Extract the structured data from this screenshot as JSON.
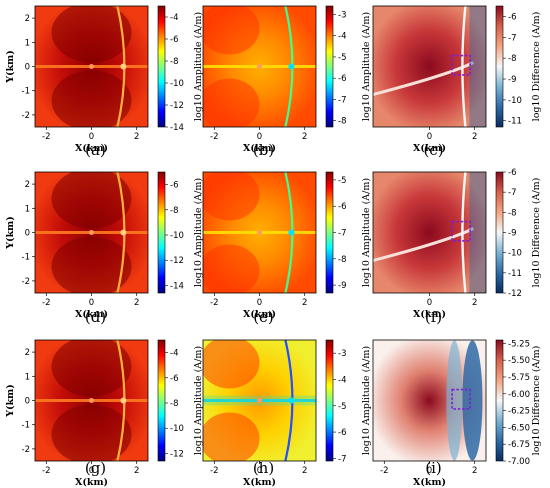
{
  "colors": {
    "jet": [
      "#00007f",
      "#0000ff",
      "#0080ff",
      "#00ffff",
      "#80ff80",
      "#ffff00",
      "#ff8000",
      "#ff0000",
      "#7f0000"
    ],
    "diverging": [
      "#0b2a62",
      "#2d6aa6",
      "#7ab3d4",
      "#f7f7f7",
      "#f4a582",
      "#d6604d",
      "#8b0a1e"
    ],
    "marker_box": "#7a1fd6"
  },
  "chart_data": [
    {
      "panel": "(a)",
      "type": "heatmap",
      "ylabel": "Y(km)",
      "xlabel": "X(km)",
      "xlim": [
        -2.5,
        2.5
      ],
      "ylim": [
        -2.5,
        2.5
      ],
      "xticks": [
        "-2",
        "0",
        "2"
      ],
      "yticks": [
        "2",
        "1",
        "0",
        "-1",
        "-2"
      ],
      "colorbar": {
        "label": "log10 Amplitude (A/m)",
        "range": [
          -14,
          -3
        ],
        "ticks": [
          "-4",
          "-6",
          "-8",
          "-10",
          "-12",
          "-14"
        ],
        "cmap": "jet"
      }
    },
    {
      "panel": "(b)",
      "type": "heatmap",
      "ylabel": "",
      "xlabel": "X(km)",
      "xlim": [
        -2.5,
        2.5
      ],
      "ylim": [
        -2.5,
        2.5
      ],
      "xticks": [
        "-2",
        "0",
        "2"
      ],
      "yticks": [],
      "colorbar": {
        "label": "log10 Amplitude (A/m)",
        "range": [
          -8.3,
          -2.6
        ],
        "ticks": [
          "-3",
          "-4",
          "-5",
          "-6",
          "-7",
          "-8"
        ],
        "cmap": "jet"
      }
    },
    {
      "panel": "(c)",
      "type": "heatmap",
      "ylabel": "",
      "xlabel": "X(km)",
      "xlim": [
        -2.5,
        2.5
      ],
      "ylim": [
        -2.5,
        2.5
      ],
      "xticks": [
        "0",
        "2"
      ],
      "yticks": [],
      "colorbar": {
        "label": "log10 Difference (A/m)",
        "range": [
          -11.3,
          -5.5
        ],
        "ticks": [
          "-6",
          "-7",
          "-8",
          "-9",
          "-10",
          "-11"
        ],
        "cmap": "diverging"
      },
      "box": {
        "x": [
          1.0,
          1.8
        ],
        "y": [
          -0.35,
          0.45
        ]
      }
    },
    {
      "panel": "(d)",
      "type": "heatmap",
      "ylabel": "Y(km)",
      "xlabel": "X(km)",
      "xlim": [
        -2.5,
        2.5
      ],
      "ylim": [
        -2.5,
        2.5
      ],
      "xticks": [
        "-2",
        "0",
        "2"
      ],
      "yticks": [
        "2",
        "1",
        "0",
        "-1",
        "-2"
      ],
      "colorbar": {
        "label": "log10 Amplitude (A/m)",
        "range": [
          -14.6,
          -5
        ],
        "ticks": [
          "-6",
          "-8",
          "-10",
          "-12",
          "-14"
        ],
        "cmap": "jet"
      }
    },
    {
      "panel": "(e)",
      "type": "heatmap",
      "ylabel": "",
      "xlabel": "X(km)",
      "xlim": [
        -2.5,
        2.5
      ],
      "ylim": [
        -2.5,
        2.5
      ],
      "xticks": [
        "-2",
        "0",
        "2"
      ],
      "yticks": [],
      "colorbar": {
        "label": "log10 Amplitude (A/m)",
        "range": [
          -9.3,
          -4.7
        ],
        "ticks": [
          "-5",
          "-6",
          "-7",
          "-8",
          "-9"
        ],
        "cmap": "jet"
      }
    },
    {
      "panel": "(f)",
      "type": "heatmap",
      "ylabel": "",
      "xlabel": "X(km)",
      "xlim": [
        -2.5,
        2.5
      ],
      "ylim": [
        -2.5,
        2.5
      ],
      "xticks": [
        "0",
        "2"
      ],
      "yticks": [],
      "colorbar": {
        "label": "log10 Difference (A/m)",
        "range": [
          -12,
          -6
        ],
        "ticks": [
          "-6",
          "-7",
          "-8",
          "-9",
          "-10",
          "-11",
          "-12"
        ],
        "cmap": "diverging"
      },
      "box": {
        "x": [
          1.0,
          1.8
        ],
        "y": [
          -0.35,
          0.45
        ]
      }
    },
    {
      "panel": "(g)",
      "type": "heatmap",
      "ylabel": "Y(km)",
      "xlabel": "X(km)",
      "xlim": [
        -2.5,
        2.5
      ],
      "ylim": [
        -2.5,
        2.5
      ],
      "xticks": [
        "-2",
        "0",
        "2"
      ],
      "yticks": [
        "2",
        "1",
        "0",
        "-1",
        "-2"
      ],
      "colorbar": {
        "label": "log10 Amplitude (A/m)",
        "range": [
          -12.6,
          -3
        ],
        "ticks": [
          "-4",
          "-6",
          "-8",
          "-10",
          "-12"
        ],
        "cmap": "jet"
      }
    },
    {
      "panel": "(h)",
      "type": "heatmap",
      "ylabel": "",
      "xlabel": "X(km)",
      "xlim": [
        -2.5,
        2.5
      ],
      "ylim": [
        -2.5,
        2.5
      ],
      "xticks": [
        "-2",
        "0",
        "2"
      ],
      "yticks": [],
      "colorbar": {
        "label": "log10 Amplitude (A/m)",
        "range": [
          -7.1,
          -2.5
        ],
        "ticks": [
          "-3",
          "-4",
          "-5",
          "-6",
          "-7"
        ],
        "cmap": "jet"
      }
    },
    {
      "panel": "(i)",
      "type": "heatmap",
      "ylabel": "",
      "xlabel": "X(km)",
      "xlim": [
        -2.5,
        2.5
      ],
      "ylim": [
        -2.5,
        2.5
      ],
      "xticks": [
        "-2",
        "0",
        "2"
      ],
      "yticks": [],
      "colorbar": {
        "label": "log10 Difference (A/m)",
        "range": [
          -7.0,
          -5.2
        ],
        "ticks": [
          "-5.25",
          "-5.50",
          "-5.75",
          "-6.00",
          "-6.25",
          "-6.50",
          "-6.75",
          "-7.00"
        ],
        "cmap": "diverging"
      },
      "box": {
        "x": [
          1.0,
          1.8
        ],
        "y": [
          -0.35,
          0.45
        ]
      }
    }
  ]
}
